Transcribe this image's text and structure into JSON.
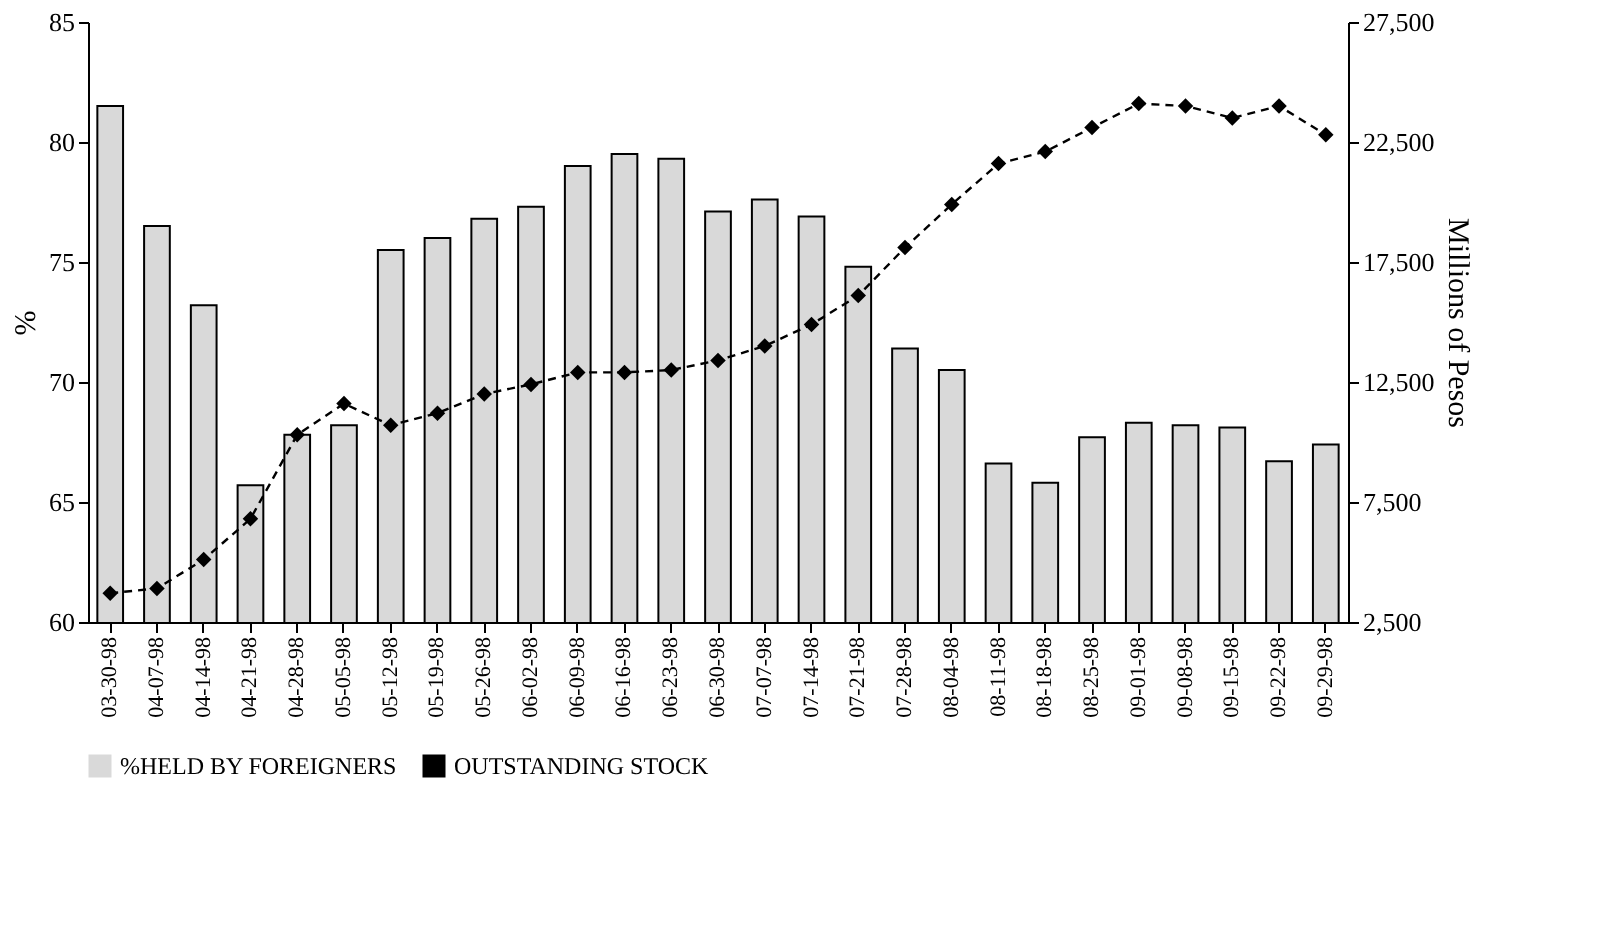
{
  "chart_data": {
    "type": "bar",
    "ylabel": "%",
    "y2label": "Millions of Pesos",
    "categories": [
      "03-30-98",
      "04-07-98",
      "04-14-98",
      "04-21-98",
      "04-28-98",
      "05-05-98",
      "05-12-98",
      "05-19-98",
      "05-26-98",
      "06-02-98",
      "06-09-98",
      "06-16-98",
      "06-23-98",
      "06-30-98",
      "07-07-98",
      "07-14-98",
      "07-21-98",
      "07-28-98",
      "08-04-98",
      "08-11-98",
      "08-18-98",
      "08-25-98",
      "09-01-98",
      "09-08-98",
      "09-15-98",
      "09-22-98",
      "09-29-98"
    ],
    "series": [
      {
        "name": "%HELD BY FOREIGNERS",
        "color": "#d9d9d9",
        "values": [
          81.5,
          76.5,
          73.2,
          65.7,
          67.8,
          68.2,
          75.5,
          76.0,
          76.8,
          77.3,
          79.0,
          79.5,
          79.3,
          77.1,
          77.6,
          76.9,
          74.8,
          71.4,
          70.5,
          66.6,
          65.8,
          67.7,
          68.3,
          68.2,
          68.1,
          66.7,
          67.4
        ]
      },
      {
        "name": "OUTSTANDING STOCK",
        "type": "line",
        "axis": "y2",
        "color": "#000000",
        "marker": "diamond",
        "line_style": "dashed",
        "values": [
          3700,
          3900,
          5100,
          6800,
          10300,
          11600,
          10700,
          11200,
          12000,
          12400,
          12900,
          12900,
          13000,
          13400,
          14000,
          14900,
          16100,
          18100,
          19900,
          21600,
          22100,
          23100,
          24100,
          24000,
          23500,
          24000,
          22800
        ]
      }
    ],
    "ylim": [
      60,
      85
    ],
    "yticks": [
      60,
      65,
      70,
      75,
      80,
      85
    ],
    "y2lim": [
      2500,
      27500
    ],
    "y2ticks": [
      {
        "value": 2500,
        "label": "2,500"
      },
      {
        "value": 7500,
        "label": "7,500"
      },
      {
        "value": 12500,
        "label": "12,500"
      },
      {
        "value": 17500,
        "label": "17,500"
      },
      {
        "value": 22500,
        "label": "22,500"
      },
      {
        "value": 27500,
        "label": "27,500"
      }
    ],
    "grid": false,
    "legend": "bottom"
  }
}
